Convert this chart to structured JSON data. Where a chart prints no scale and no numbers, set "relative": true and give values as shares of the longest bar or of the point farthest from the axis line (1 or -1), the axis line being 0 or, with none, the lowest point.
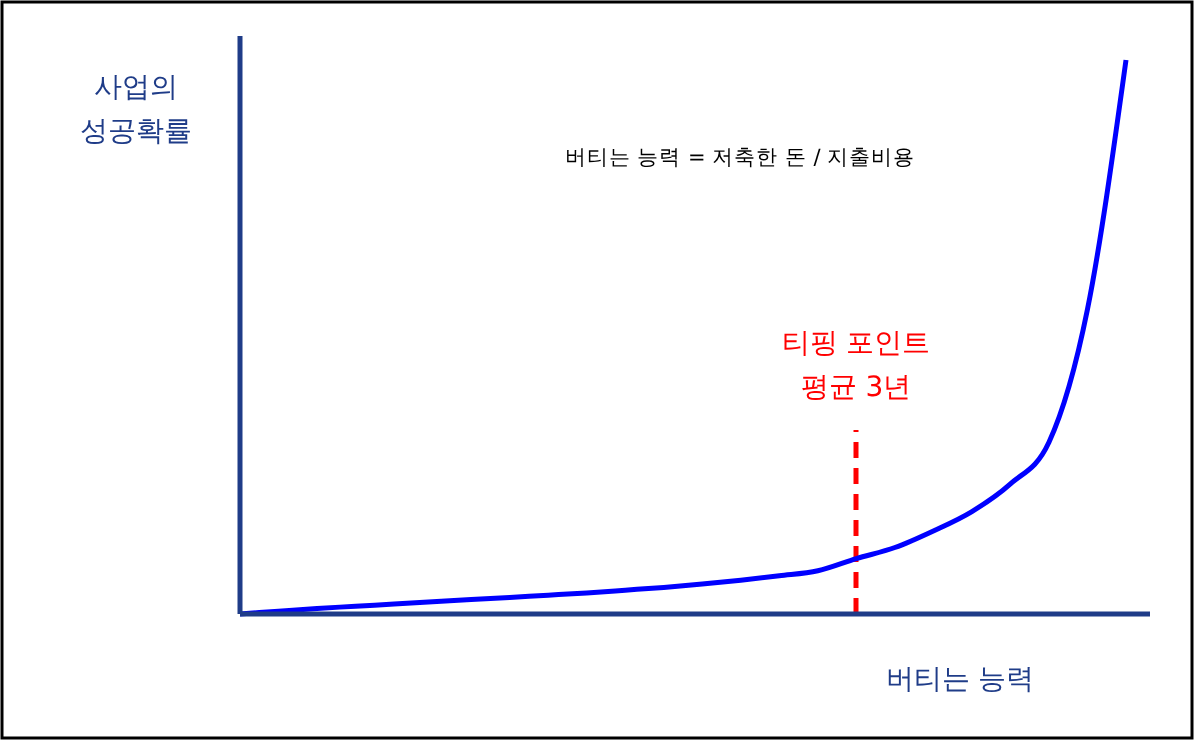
{
  "chart_data": {
    "type": "line",
    "relative": true,
    "ylabel": "사업의\n성공확률",
    "xlabel": "버티는 능력",
    "annotations": [
      "버티는 능력 = 저축한 돈 / 지출비용",
      "티핑 포인트\n평균 3년"
    ],
    "categories": [
      null,
      null,
      null,
      null,
      null,
      null,
      null,
      null,
      null,
      null,
      null,
      null,
      null,
      null,
      null,
      null,
      null,
      null,
      null,
      null,
      null,
      null,
      null,
      null
    ],
    "series": [
      {
        "color": "#0000ff",
        "values": [
          0,
          0.005,
          0.01,
          0.014,
          0.018,
          0.022,
          0.026,
          0.03,
          0.034,
          0.038,
          0.043,
          0.048,
          0.054,
          0.061,
          0.069,
          0.078,
          0.1,
          0.12,
          0.15,
          0.185,
          0.235,
          0.31,
          0.55,
          1
        ]
      }
    ],
    "marker": "none",
    "line_style": "solid"
  }
}
